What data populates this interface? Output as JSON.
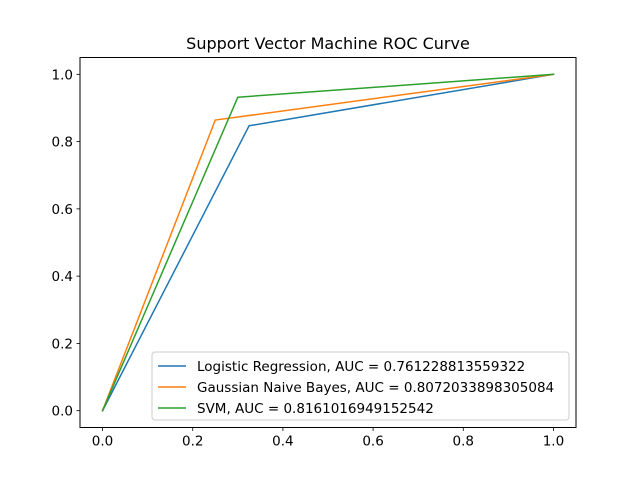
{
  "chart_data": {
    "type": "line",
    "title": "Support Vector Machine ROC Curve",
    "xlabel": "",
    "ylabel": "",
    "xlim": [
      -0.05,
      1.05
    ],
    "ylim": [
      -0.05,
      1.05
    ],
    "xticks": [
      {
        "value": 0.0,
        "label": "0.0"
      },
      {
        "value": 0.2,
        "label": "0.2"
      },
      {
        "value": 0.4,
        "label": "0.4"
      },
      {
        "value": 0.6,
        "label": "0.6"
      },
      {
        "value": 0.8,
        "label": "0.8"
      },
      {
        "value": 1.0,
        "label": "1.0"
      }
    ],
    "yticks": [
      {
        "value": 0.0,
        "label": "0.0"
      },
      {
        "value": 0.2,
        "label": "0.2"
      },
      {
        "value": 0.4,
        "label": "0.4"
      },
      {
        "value": 0.6,
        "label": "0.6"
      },
      {
        "value": 0.8,
        "label": "0.8"
      },
      {
        "value": 1.0,
        "label": "1.0"
      }
    ],
    "grid": false,
    "legend_position": "lower-right",
    "series": [
      {
        "name": "Logistic Regression, AUC = 0.761228813559322",
        "color": "#1f77b4",
        "points": [
          [
            0.0,
            0.0
          ],
          [
            0.325,
            0.847
          ],
          [
            1.0,
            1.0
          ]
        ]
      },
      {
        "name": "Gaussian Naive Bayes, AUC = 0.8072033898305084",
        "color": "#ff7f0e",
        "points": [
          [
            0.0,
            0.0
          ],
          [
            0.25,
            0.864
          ],
          [
            1.0,
            1.0
          ]
        ]
      },
      {
        "name": "SVM, AUC = 0.8161016949152542",
        "color": "#2ca02c",
        "points": [
          [
            0.0,
            0.0
          ],
          [
            0.3,
            0.932
          ],
          [
            1.0,
            1.0
          ]
        ]
      }
    ]
  }
}
